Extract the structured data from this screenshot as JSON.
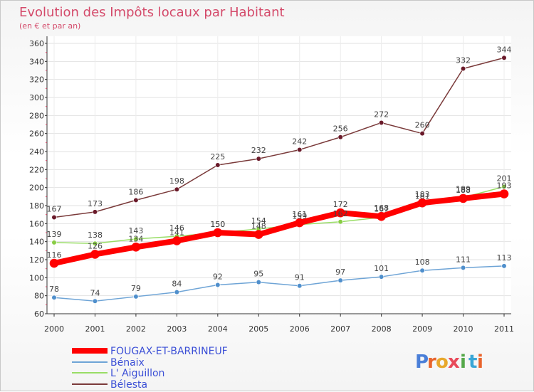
{
  "brand": {
    "letters": [
      "P",
      "r",
      "o",
      "x",
      "i",
      "t",
      "i"
    ],
    "colors": [
      "#4a7fd8",
      "#e8642c",
      "#e8a82c",
      "#e84a5a",
      "#55a84a",
      "#3aa6d6",
      "#e8642c"
    ]
  },
  "chart_data": {
    "type": "line",
    "title": "Evolution des Impôts locaux par Habitant",
    "subtitle": "(en € et par an)",
    "xlabel": "",
    "ylabel": "",
    "categories": [
      "2000",
      "2001",
      "2002",
      "2003",
      "2004",
      "2005",
      "2006",
      "2007",
      "2008",
      "2009",
      "2010",
      "2011"
    ],
    "ylim": [
      60,
      360
    ],
    "yticks": [
      60,
      80,
      100,
      120,
      140,
      160,
      180,
      200,
      220,
      240,
      260,
      280,
      300,
      320,
      340,
      360
    ],
    "grid": true,
    "legend_position": "bottom-left",
    "series": [
      {
        "name": "FOUGAX-ET-BARRINEUF",
        "color": "#ff0000",
        "marker": "#ff0000",
        "width": 8,
        "values": [
          116,
          126,
          134,
          141,
          150,
          148,
          161,
          172,
          168,
          183,
          188,
          193
        ]
      },
      {
        "name": "Bénaix",
        "color": "#6ea4d6",
        "marker": "#4f8fcc",
        "width": 1.5,
        "values": [
          78,
          74,
          79,
          84,
          92,
          95,
          91,
          97,
          101,
          108,
          111,
          113
        ]
      },
      {
        "name": "L' Aiguillon",
        "color": "#99dd66",
        "marker": "#88cc44",
        "width": 1.5,
        "values": [
          139,
          138,
          143,
          146,
          150,
          154,
          159,
          162,
          167,
          181,
          189,
          201
        ]
      },
      {
        "name": "Bélesta",
        "color": "#7a3a3a",
        "marker": "#6a1a2a",
        "width": 1.5,
        "values": [
          167,
          173,
          186,
          198,
          225,
          232,
          242,
          256,
          272,
          260,
          332,
          344
        ]
      }
    ],
    "label_order": [
      2,
      0,
      1,
      3
    ]
  }
}
